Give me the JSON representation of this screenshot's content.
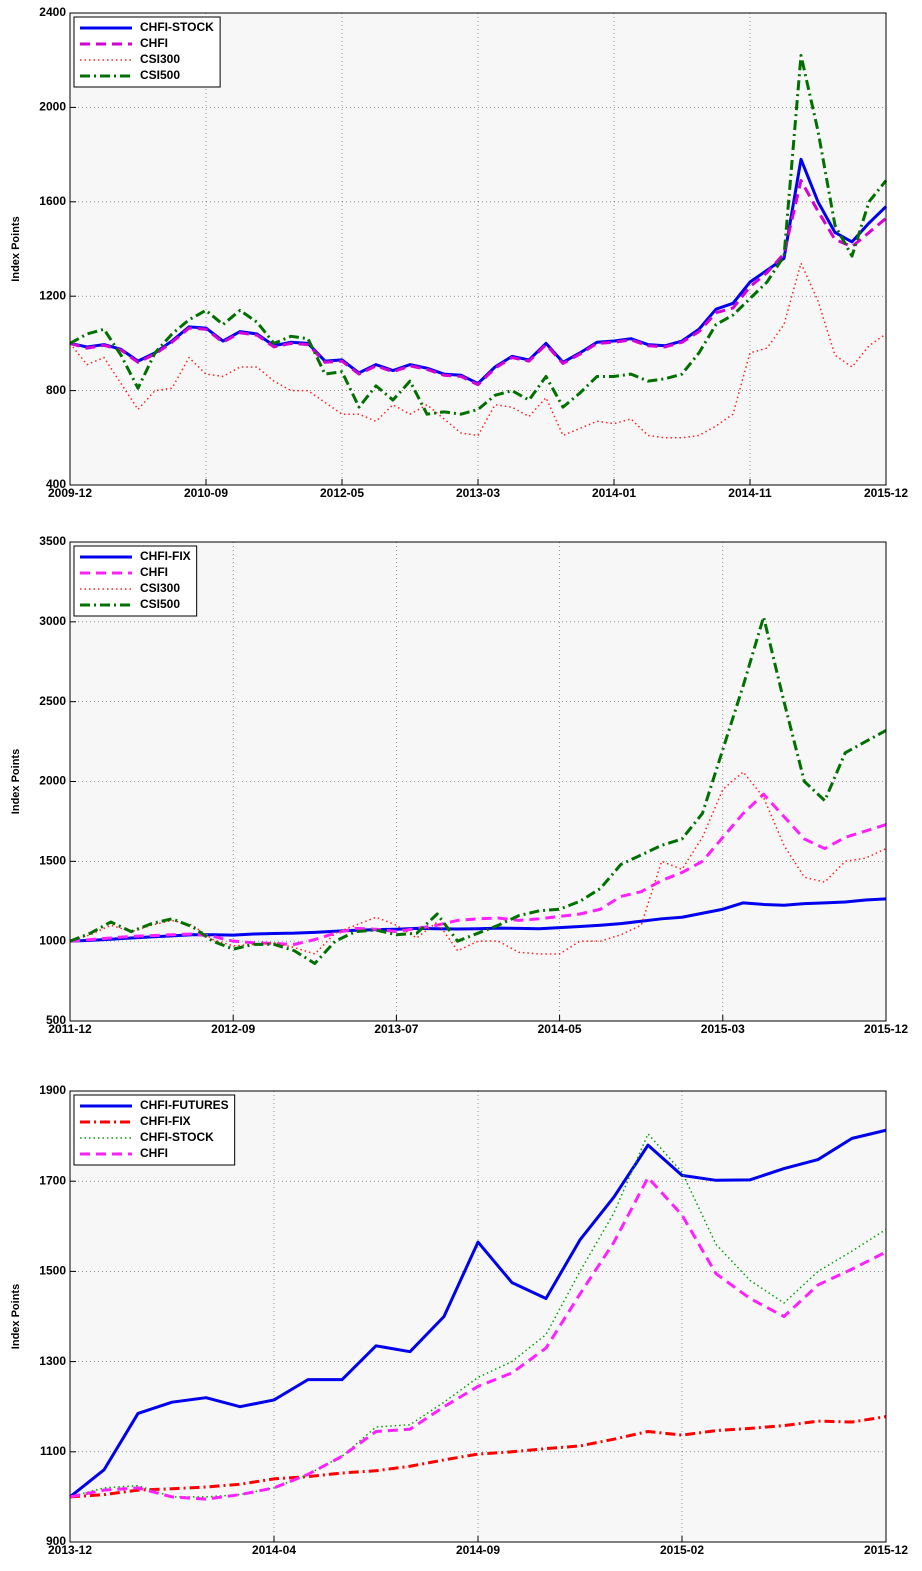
{
  "chart_data": [
    {
      "type": "line",
      "ylabel": "Index Points",
      "categories": [
        "2009-12",
        null,
        null,
        null,
        null,
        null,
        null,
        null,
        "2010-09",
        null,
        null,
        null,
        null,
        null,
        null,
        null,
        "2012-05",
        null,
        null,
        null,
        null,
        null,
        null,
        null,
        "2013-03",
        null,
        null,
        null,
        null,
        null,
        null,
        null,
        "2014-01",
        null,
        null,
        null,
        null,
        null,
        null,
        null,
        "2014-11",
        null,
        null,
        null,
        null,
        null,
        null,
        null,
        "2015-12"
      ],
      "ylim": [
        400,
        2400
      ],
      "yticks": [
        400,
        800,
        1200,
        1600,
        2000,
        2400
      ],
      "grid": true,
      "legend": "upper-left",
      "series": [
        {
          "name": "CHFI-STOCK",
          "color": "#0000ee",
          "style": "solid",
          "values": [
            1000,
            985,
            995,
            975,
            925,
            960,
            1010,
            1070,
            1065,
            1010,
            1050,
            1040,
            990,
            1005,
            1000,
            925,
            930,
            875,
            910,
            885,
            910,
            895,
            870,
            865,
            830,
            900,
            945,
            930,
            1000,
            920,
            960,
            1005,
            1010,
            1020,
            995,
            990,
            1010,
            1060,
            1145,
            1170,
            1260,
            1310,
            1360,
            1780,
            1600,
            1470,
            1430,
            1510,
            1580
          ]
        },
        {
          "name": "CHFI",
          "color": "#d400d4",
          "style": "dashed",
          "values": [
            1000,
            980,
            992,
            972,
            920,
            955,
            1005,
            1065,
            1060,
            1005,
            1045,
            1035,
            985,
            1000,
            995,
            920,
            925,
            870,
            905,
            880,
            905,
            890,
            865,
            860,
            825,
            895,
            940,
            925,
            995,
            915,
            955,
            1000,
            1005,
            1015,
            990,
            985,
            1005,
            1050,
            1130,
            1150,
            1240,
            1300,
            1380,
            1690,
            1560,
            1440,
            1410,
            1470,
            1530
          ]
        },
        {
          "name": "CSI300",
          "color": "#ff2020",
          "style": "dotted",
          "values": [
            1000,
            910,
            940,
            830,
            720,
            800,
            810,
            940,
            870,
            860,
            900,
            900,
            840,
            800,
            800,
            750,
            700,
            700,
            670,
            740,
            700,
            740,
            680,
            620,
            610,
            740,
            730,
            690,
            770,
            610,
            640,
            670,
            660,
            680,
            610,
            600,
            600,
            610,
            650,
            700,
            960,
            980,
            1080,
            1340,
            1180,
            950,
            900,
            990,
            1040
          ]
        },
        {
          "name": "CSI500",
          "color": "#007000",
          "style": "dashdot",
          "values": [
            1000,
            1040,
            1060,
            950,
            810,
            960,
            1040,
            1100,
            1140,
            1080,
            1140,
            1090,
            1000,
            1030,
            1020,
            870,
            880,
            730,
            820,
            760,
            840,
            700,
            710,
            700,
            720,
            780,
            800,
            760,
            860,
            730,
            790,
            860,
            860,
            870,
            840,
            850,
            870,
            960,
            1080,
            1120,
            1190,
            1260,
            1370,
            2220,
            1900,
            1500,
            1370,
            1600,
            1690
          ]
        }
      ]
    },
    {
      "type": "line",
      "ylabel": "Index Points",
      "categories": [
        "2011-12",
        null,
        null,
        null,
        null,
        null,
        null,
        null,
        "2012-09",
        null,
        null,
        null,
        null,
        null,
        null,
        null,
        "2013-07",
        null,
        null,
        null,
        null,
        null,
        null,
        null,
        "2014-05",
        null,
        null,
        null,
        null,
        null,
        null,
        null,
        "2015-03",
        null,
        null,
        null,
        null,
        null,
        null,
        null,
        "2015-12"
      ],
      "ylim": [
        500,
        3500
      ],
      "yticks": [
        500,
        1000,
        1500,
        2000,
        2500,
        3000,
        3500
      ],
      "grid": true,
      "legend": "upper-left",
      "series": [
        {
          "name": "CHFI-FIX",
          "color": "#0000ee",
          "style": "solid",
          "values": [
            1000,
            1005,
            1012,
            1020,
            1027,
            1033,
            1040,
            1040,
            1038,
            1045,
            1048,
            1050,
            1055,
            1062,
            1068,
            1072,
            1075,
            1080,
            1078,
            1076,
            1078,
            1082,
            1080,
            1078,
            1085,
            1092,
            1100,
            1110,
            1125,
            1140,
            1150,
            1175,
            1200,
            1240,
            1230,
            1225,
            1235,
            1240,
            1245,
            1258,
            1265
          ]
        },
        {
          "name": "CHFI",
          "color": "#ff20ff",
          "style": "dashed",
          "values": [
            1000,
            1010,
            1020,
            1030,
            1035,
            1040,
            1045,
            1030,
            1000,
            990,
            985,
            980,
            1010,
            1050,
            1080,
            1075,
            1060,
            1080,
            1100,
            1130,
            1140,
            1145,
            1130,
            1140,
            1155,
            1170,
            1200,
            1280,
            1310,
            1380,
            1430,
            1500,
            1650,
            1800,
            1920,
            1780,
            1640,
            1580,
            1650,
            1690,
            1730
          ]
        },
        {
          "name": "CSI300",
          "color": "#ff2020",
          "style": "dotted",
          "values": [
            1000,
            1040,
            1100,
            1060,
            1100,
            1130,
            1100,
            1010,
            970,
            980,
            990,
            960,
            920,
            1050,
            1100,
            1150,
            1100,
            1020,
            1120,
            940,
            1000,
            1000,
            930,
            920,
            920,
            1000,
            1000,
            1040,
            1100,
            1500,
            1450,
            1650,
            1950,
            2060,
            1900,
            1600,
            1400,
            1370,
            1500,
            1520,
            1580
          ]
        },
        {
          "name": "CSI500",
          "color": "#007000",
          "style": "dashdot",
          "values": [
            1000,
            1050,
            1120,
            1060,
            1110,
            1140,
            1090,
            1000,
            950,
            980,
            980,
            940,
            860,
            1000,
            1060,
            1070,
            1040,
            1050,
            1170,
            1000,
            1050,
            1100,
            1160,
            1190,
            1200,
            1250,
            1330,
            1480,
            1540,
            1600,
            1640,
            1800,
            2200,
            2600,
            3030,
            2500,
            2000,
            1880,
            2180,
            2250,
            2320
          ]
        }
      ]
    },
    {
      "type": "line",
      "ylabel": "Index Points",
      "categories": [
        "2013-12",
        null,
        null,
        null,
        null,
        null,
        "2014-04",
        null,
        null,
        null,
        null,
        null,
        "2014-09",
        null,
        null,
        null,
        null,
        null,
        "2015-02",
        null,
        null,
        null,
        null,
        null,
        "2015-12"
      ],
      "ylim": [
        900,
        1900
      ],
      "yticks": [
        900,
        1100,
        1300,
        1500,
        1700,
        1900
      ],
      "grid": true,
      "legend": "upper-left",
      "series": [
        {
          "name": "CHFI-FUTURES",
          "color": "#0000ee",
          "style": "solid",
          "values": [
            1000,
            1060,
            1185,
            1210,
            1220,
            1200,
            1215,
            1260,
            1260,
            1335,
            1322,
            1400,
            1565,
            1475,
            1440,
            1570,
            1665,
            1780,
            1713,
            1702,
            1703,
            1728,
            1748,
            1795,
            1813
          ]
        },
        {
          "name": "CHFI-FIX",
          "color": "#ff0000",
          "style": "dashdot",
          "values": [
            1000,
            1005,
            1015,
            1018,
            1022,
            1028,
            1040,
            1045,
            1053,
            1058,
            1068,
            1082,
            1095,
            1100,
            1107,
            1113,
            1128,
            1145,
            1137,
            1147,
            1152,
            1158,
            1168,
            1166,
            1178
          ]
        },
        {
          "name": "CHFI-STOCK",
          "color": "#00a000",
          "style": "dotted",
          "values": [
            1000,
            1020,
            1025,
            1000,
            1000,
            1005,
            1020,
            1050,
            1090,
            1155,
            1160,
            1210,
            1265,
            1300,
            1360,
            1500,
            1630,
            1805,
            1720,
            1560,
            1480,
            1430,
            1500,
            1545,
            1593
          ]
        },
        {
          "name": "CHFI",
          "color": "#ff20ff",
          "style": "dashed",
          "values": [
            1000,
            1015,
            1020,
            1000,
            995,
            1005,
            1020,
            1050,
            1090,
            1145,
            1150,
            1200,
            1245,
            1275,
            1330,
            1450,
            1565,
            1708,
            1625,
            1495,
            1440,
            1400,
            1470,
            1505,
            1543
          ]
        }
      ]
    }
  ]
}
